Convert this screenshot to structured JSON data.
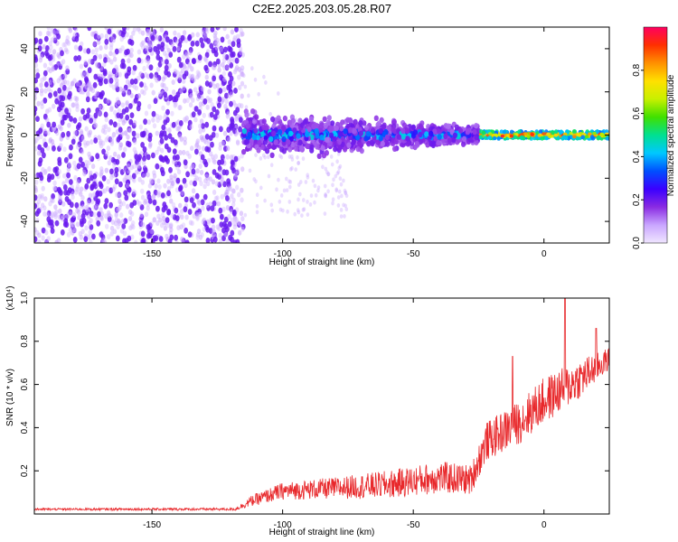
{
  "figure": {
    "title": "C2E2.2025.203.05.28.R07"
  },
  "chart_data": [
    {
      "type": "heatmap",
      "xlabel": "Height of straight line (km)",
      "ylabel": "Frequency (Hz)",
      "xlim": [
        -195,
        25
      ],
      "ylim": [
        -50,
        50
      ],
      "xticks": [
        -150,
        -100,
        -50,
        0
      ],
      "yticks": [
        -40,
        -20,
        0,
        20,
        40
      ],
      "colorbar": {
        "label": "Normalized spectral amplitude",
        "range": [
          0,
          1
        ],
        "ticks": [
          0.0,
          0.2,
          0.4,
          0.6,
          0.8
        ],
        "colors": [
          "#f0e6ff",
          "#c9a6ff",
          "#8a2be2",
          "#3a00ff",
          "#0050ff",
          "#00c8ff",
          "#00e090",
          "#40e000",
          "#c8f000",
          "#ffe000",
          "#ff9000",
          "#ff3000",
          "#ff0060"
        ]
      },
      "regions": [
        {
          "x_range": [
            -195,
            -115
          ],
          "freq_range": [
            -50,
            50
          ],
          "amplitude": [
            0.05,
            0.2
          ]
        },
        {
          "x_range": [
            -115,
            -25
          ],
          "freq_center": 0,
          "freq_halfwidth": [
            3,
            8
          ],
          "amplitude": [
            0.15,
            0.45
          ]
        },
        {
          "x_range": [
            -25,
            25
          ],
          "freq_center": 0,
          "freq_halfwidth": [
            1,
            2
          ],
          "amplitude": [
            0.6,
            0.95
          ]
        }
      ]
    },
    {
      "type": "line",
      "xlabel": "Height of straight line (km)",
      "ylabel": "SNR (10 * v/v)",
      "y_multiplier": "(x10⁴)",
      "xlim": [
        -195,
        25
      ],
      "ylim": [
        0,
        1.0
      ],
      "xticks": [
        -150,
        -100,
        -50,
        0
      ],
      "yticks": [
        0.2,
        0.4,
        0.6,
        0.8,
        1.0
      ],
      "series": [
        {
          "color": "#e8282b",
          "profile": [
            {
              "x": -195,
              "base": 0.02,
              "spread": 0.01
            },
            {
              "x": -118,
              "base": 0.02,
              "spread": 0.012
            },
            {
              "x": -112,
              "base": 0.05,
              "spread": 0.05
            },
            {
              "x": -100,
              "base": 0.09,
              "spread": 0.08
            },
            {
              "x": -80,
              "base": 0.1,
              "spread": 0.1
            },
            {
              "x": -60,
              "base": 0.11,
              "spread": 0.13
            },
            {
              "x": -40,
              "base": 0.14,
              "spread": 0.15
            },
            {
              "x": -28,
              "base": 0.13,
              "spread": 0.14
            },
            {
              "x": -22,
              "base": 0.3,
              "spread": 0.18
            },
            {
              "x": -10,
              "base": 0.38,
              "spread": 0.2
            },
            {
              "x": 0,
              "base": 0.48,
              "spread": 0.22
            },
            {
              "x": 15,
              "base": 0.6,
              "spread": 0.18
            },
            {
              "x": 25,
              "base": 0.7,
              "spread": 0.1
            }
          ],
          "peaks": [
            {
              "x": 8,
              "y": 1.0
            },
            {
              "x": -12,
              "y": 0.73
            },
            {
              "x": 20,
              "y": 0.86
            }
          ]
        }
      ]
    }
  ]
}
